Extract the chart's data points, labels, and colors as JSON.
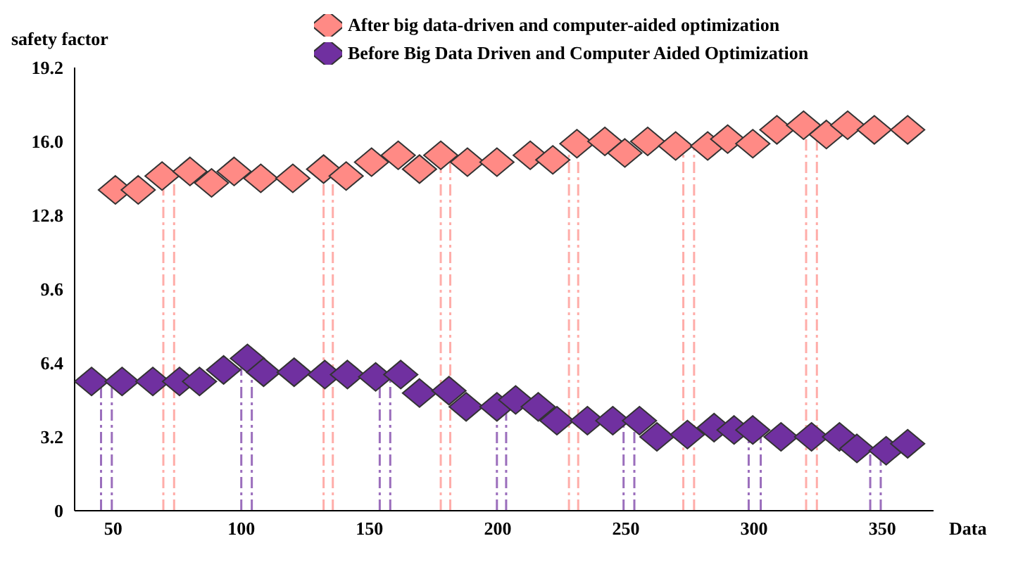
{
  "chart_data": {
    "type": "scatter",
    "ylabel": "safety factor",
    "xlabel": "Data",
    "xlim": [
      35,
      370
    ],
    "xticks": [
      50,
      100,
      150,
      200,
      250,
      300,
      350
    ],
    "ylim": [
      0,
      19.2
    ],
    "yticks": [
      0,
      3.2,
      6.4,
      9.6,
      12.8,
      {
        "value": 16,
        "label": "16.0"
      },
      19.2
    ],
    "grid": false,
    "legend": "top",
    "marker": "diamond",
    "series": [
      {
        "name": "After big data-driven and computer-aided optimization",
        "color": "#ff8a85",
        "x": [
          50.9,
          59.8,
          69.1,
          80,
          88.4,
          97.2,
          107.6,
          120.1,
          132.1,
          140.9,
          150.8,
          161.2,
          169.5,
          177.8,
          188.2,
          199.7,
          212.7,
          221.5,
          230.9,
          241.8,
          249.6,
          258.5,
          269.4,
          281.9,
          289.7,
          299.5,
          308.9,
          319.3,
          328.2,
          336.5,
          346.9,
          359.9
        ],
        "values": [
          13.9,
          13.9,
          14.5,
          14.7,
          14.2,
          14.7,
          14.4,
          14.4,
          14.8,
          14.5,
          15.1,
          15.4,
          14.8,
          15.4,
          15.1,
          15.1,
          15.4,
          15.2,
          15.9,
          16.0,
          15.5,
          16.0,
          15.8,
          15.8,
          16.1,
          15.9,
          16.5,
          16.7,
          16.3,
          16.7,
          16.5,
          16.5
        ]
      },
      {
        "name": "Before Big Data Driven and Computer Aided Optimization",
        "color": "#7030a0",
        "x": [
          41.6,
          53.5,
          65.5,
          75.9,
          83.7,
          93.1,
          102.4,
          108.7,
          120.6,
          132.6,
          141.4,
          152.4,
          162.2,
          169.5,
          181,
          187.7,
          199.7,
          207,
          215.8,
          223.1,
          235,
          244.9,
          255.3,
          262.1,
          274,
          284.4,
          292.2,
          299.5,
          310.5,
          322.4,
          333.3,
          340.1,
          351.5,
          359.9
        ],
        "values": [
          5.6,
          5.6,
          5.6,
          5.6,
          5.6,
          6.1,
          6.6,
          6.0,
          6.0,
          5.9,
          5.9,
          5.8,
          5.9,
          5.1,
          5.2,
          4.5,
          4.5,
          4.8,
          4.5,
          3.9,
          3.9,
          3.9,
          3.9,
          3.2,
          3.3,
          3.6,
          3.5,
          3.5,
          3.2,
          3.2,
          3.2,
          2.7,
          2.6,
          2.9
        ]
      }
    ],
    "ref_lines": [
      {
        "axis": "x",
        "value": 69.6,
        "color": "#ff8a85",
        "line_style": "dashed"
      },
      {
        "axis": "x",
        "value": 73.8,
        "color": "#ff8a85",
        "line_style": "dashed"
      },
      {
        "axis": "x",
        "value": 132.1,
        "color": "#ff8a85",
        "line_style": "dashed"
      },
      {
        "axis": "x",
        "value": 135.7,
        "color": "#ff8a85",
        "line_style": "dashed"
      },
      {
        "axis": "x",
        "value": 177.8,
        "color": "#ff8a85",
        "line_style": "dashed"
      },
      {
        "axis": "x",
        "value": 181.5,
        "color": "#ff8a85",
        "line_style": "dashed"
      },
      {
        "axis": "x",
        "value": 227.8,
        "color": "#ff8a85",
        "line_style": "dashed"
      },
      {
        "axis": "x",
        "value": 231.4,
        "color": "#ff8a85",
        "line_style": "dashed"
      },
      {
        "axis": "x",
        "value": 272.4,
        "color": "#ff8a85",
        "line_style": "dashed"
      },
      {
        "axis": "x",
        "value": 276.6,
        "color": "#ff8a85",
        "line_style": "dashed"
      },
      {
        "axis": "x",
        "value": 320.3,
        "color": "#ff8a85",
        "line_style": "dashed"
      },
      {
        "axis": "x",
        "value": 324.5,
        "color": "#ff8a85",
        "line_style": "dashed"
      },
      {
        "axis": "x",
        "value": 45.3,
        "color": "#7030a0",
        "line_style": "dashed"
      },
      {
        "axis": "x",
        "value": 49.5,
        "color": "#7030a0",
        "line_style": "dashed"
      },
      {
        "axis": "x",
        "value": 100,
        "color": "#7030a0",
        "line_style": "dashed"
      },
      {
        "axis": "x",
        "value": 104.1,
        "color": "#7030a0",
        "line_style": "dashed"
      },
      {
        "axis": "x",
        "value": 154,
        "color": "#7030a0",
        "line_style": "dashed"
      },
      {
        "axis": "x",
        "value": 158.1,
        "color": "#7030a0",
        "line_style": "dashed"
      },
      {
        "axis": "x",
        "value": 199.7,
        "color": "#7030a0",
        "line_style": "dashed"
      },
      {
        "axis": "x",
        "value": 203.3,
        "color": "#7030a0",
        "line_style": "dashed"
      },
      {
        "axis": "x",
        "value": 249.1,
        "color": "#7030a0",
        "line_style": "dashed"
      },
      {
        "axis": "x",
        "value": 253.3,
        "color": "#7030a0",
        "line_style": "dashed"
      },
      {
        "axis": "x",
        "value": 297.9,
        "color": "#7030a0",
        "line_style": "dashed"
      },
      {
        "axis": "x",
        "value": 302.6,
        "color": "#7030a0",
        "line_style": "dashed"
      },
      {
        "axis": "x",
        "value": 345.3,
        "color": "#7030a0",
        "line_style": "dashed"
      },
      {
        "axis": "x",
        "value": 349.4,
        "color": "#7030a0",
        "line_style": "dashed"
      }
    ]
  }
}
